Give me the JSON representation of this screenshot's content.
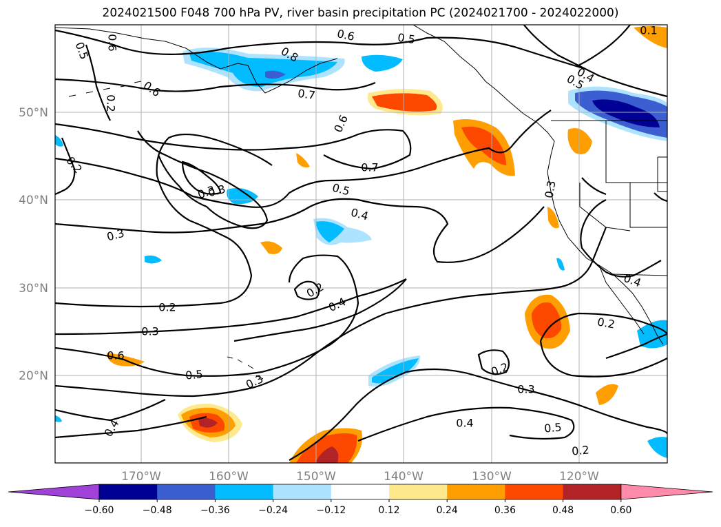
{
  "title": "2024021500 F048 700 hPa PV, river basin precipitation PC (2024021700 - 2024022000)",
  "lat_labels": [
    "50°N",
    "40°N",
    "30°N",
    "20°N"
  ],
  "lon_labels": [
    "170°W",
    "160°W",
    "150°W",
    "140°W",
    "130°W",
    "120°W"
  ],
  "colorbar": {
    "colors": [
      "#a042d8",
      "#010094",
      "#3b5ed0",
      "#02bcff",
      "#aee3ff",
      "#ffffff",
      "#fee98d",
      "#fe9e00",
      "#fd4800",
      "#b22327",
      "#ff8aa9"
    ],
    "tick_labels": [
      "−0.60",
      "−0.48",
      "−0.36",
      "−0.24",
      "−0.12",
      "0.12",
      "0.24",
      "0.36",
      "0.48",
      "0.60"
    ]
  },
  "contour_labels": [
    "0.5",
    "0.6",
    "0.5",
    "0.8",
    "0.6",
    "0.7",
    "0.6",
    "0.3",
    "0.4",
    "0.5",
    "0.2",
    "0.3",
    "0.6",
    "0.7",
    "0.5",
    "0.4",
    "0.3",
    "0.3",
    "0.2",
    "0.4",
    "0.2",
    "0.3",
    "0.6",
    "0.5",
    "0.3",
    "0.4",
    "0.4",
    "0.5",
    "0.2",
    "0.3",
    "0.2",
    "0.2",
    "0.4",
    "0.2",
    "0.1"
  ]
}
